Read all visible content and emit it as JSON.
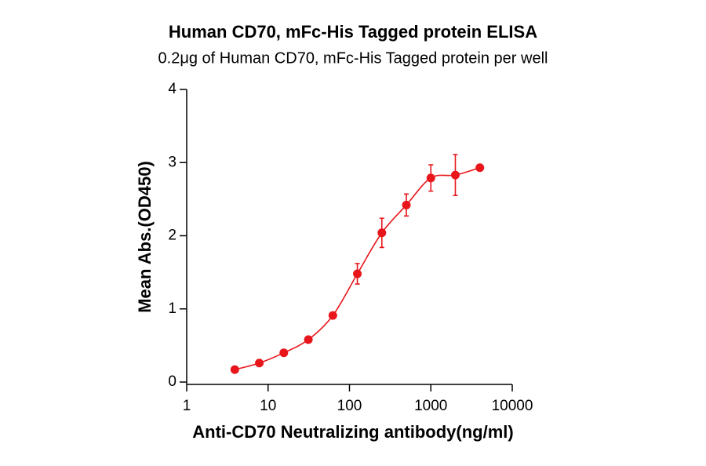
{
  "chart_data": {
    "type": "scatter",
    "title": "Human CD70,  mFc-His Tagged protein ELISA",
    "subtitle": "0.2μg of Human CD70, mFc-His Tagged protein per well",
    "x_label": "Anti-CD70 Neutralizing antibody(ng/ml)",
    "y_label": "Mean Abs.(OD450)",
    "x": [
      3.9,
      7.8,
      15.6,
      31.25,
      62.5,
      125,
      250,
      500,
      1000,
      2000,
      4000
    ],
    "series": [
      {
        "color": "#e8161b",
        "values": [
          0.17,
          0.26,
          0.4,
          0.58,
          0.91,
          1.48,
          2.04,
          2.42,
          2.79,
          2.83,
          2.93
        ],
        "errors": [
          0.02,
          0.02,
          0.02,
          0.03,
          0.03,
          0.14,
          0.2,
          0.15,
          0.18,
          0.28,
          0.04
        ]
      }
    ],
    "xscale": "log",
    "xlim": [
      1,
      10000
    ],
    "xticks": [
      1,
      10,
      100,
      1000,
      10000
    ],
    "ylim": [
      0,
      4
    ],
    "yticks": [
      0,
      1,
      2,
      3,
      4
    ],
    "fit_curve": true
  }
}
